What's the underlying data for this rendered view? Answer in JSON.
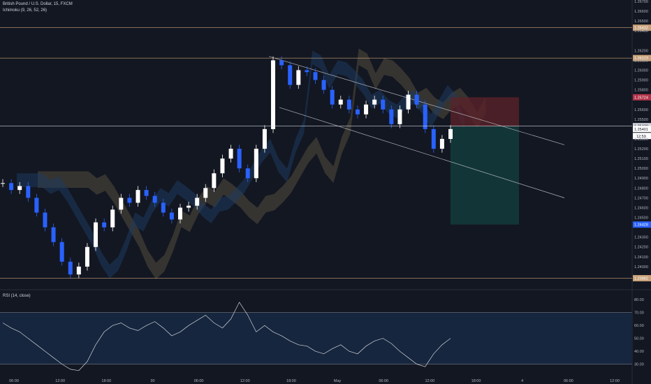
{
  "header": {
    "symbol": "British Pound / U.S. Dollar, 15, FXCM",
    "indicator": "Ichimoku (9, 26, 52, 26)",
    "rsi": "RSI (14, close)"
  },
  "colors": {
    "background": "#131722",
    "candle_up": "#ffffff",
    "candle_down": "#2962ff",
    "level_line": "#c9a27a",
    "channel": "#b2b5be",
    "cloud_bear": "#3d3a32",
    "cloud_bull": "#1e3a5f",
    "stop_zone": "#5a2229",
    "target_zone": "#133a3a",
    "rsi_band": "#16263e"
  },
  "chart_data": {
    "type": "candlestick",
    "symbol": "GBPUSD",
    "timeframe": "15",
    "ylim": [
      1.238,
      1.267
    ],
    "y_ticks": [
      "1.26700",
      "1.26600",
      "1.26500",
      "1.26400",
      "1.26200",
      "1.26100",
      "1.26000",
      "1.25900",
      "1.25800",
      "1.25600",
      "1.25500",
      "1.25300",
      "1.25200",
      "1.25100",
      "1.25000",
      "1.24900",
      "1.24800",
      "1.24700",
      "1.24600",
      "1.24500",
      "1.24300",
      "1.24200",
      "1.24100",
      "1.24000"
    ],
    "x_ticks": [
      "06:00",
      "12:00",
      "18:00",
      "30",
      "06:00",
      "12:00",
      "18:00",
      "May",
      "06:00",
      "12:00",
      "18:00",
      "4",
      "06:00",
      "12:00"
    ],
    "close_path": [
      1.2485,
      1.2478,
      1.2482,
      1.247,
      1.2455,
      1.244,
      1.2425,
      1.2405,
      1.2392,
      1.24,
      1.242,
      1.2445,
      1.244,
      1.2458,
      1.247,
      1.2465,
      1.2478,
      1.2472,
      1.2465,
      1.2455,
      1.2448,
      1.246,
      1.2462,
      1.247,
      1.248,
      1.2495,
      1.251,
      1.252,
      1.25,
      1.249,
      1.252,
      1.254,
      1.261,
      1.2605,
      1.2585,
      1.26,
      1.2598,
      1.259,
      1.258,
      1.2565,
      1.257,
      1.256,
      1.2555,
      1.2565,
      1.257,
      1.256,
      1.2545,
      1.256,
      1.2575,
      1.2565,
      1.254,
      1.252,
      1.253,
      1.254
    ],
    "levels": [
      {
        "label": "1.26432",
        "price": 1.26432,
        "color": "#c9a27a"
      },
      {
        "label": "1.26123",
        "price": 1.26123,
        "color": "#c9a27a"
      },
      {
        "label": "1.25724",
        "price": 1.25724,
        "color": "#b2344a"
      },
      {
        "label": "1.25430",
        "price": 1.2543,
        "color": "#d1d4dc"
      },
      {
        "label": "1.25401",
        "price": 1.25401,
        "color": "#ffffff"
      },
      {
        "label": "1.24428",
        "price": 1.24428,
        "color": "#2962ff"
      },
      {
        "label": "1.23882",
        "price": 1.23882,
        "color": "#c9a27a"
      }
    ],
    "countdown": "12:59",
    "rsi": {
      "ylim": [
        20,
        85
      ],
      "y_ticks": [
        "80.00",
        "70.00",
        "60.00",
        "50.00",
        "40.00",
        "30.00"
      ],
      "band": [
        30,
        70
      ],
      "values": [
        62,
        58,
        55,
        50,
        45,
        40,
        35,
        30,
        26,
        25,
        32,
        45,
        55,
        60,
        62,
        58,
        56,
        60,
        63,
        58,
        52,
        55,
        60,
        64,
        68,
        62,
        58,
        65,
        78,
        68,
        55,
        60,
        55,
        52,
        48,
        45,
        44,
        40,
        38,
        42,
        45,
        40,
        38,
        44,
        48,
        50,
        46,
        40,
        35,
        30,
        28,
        38,
        45,
        50
      ]
    }
  }
}
